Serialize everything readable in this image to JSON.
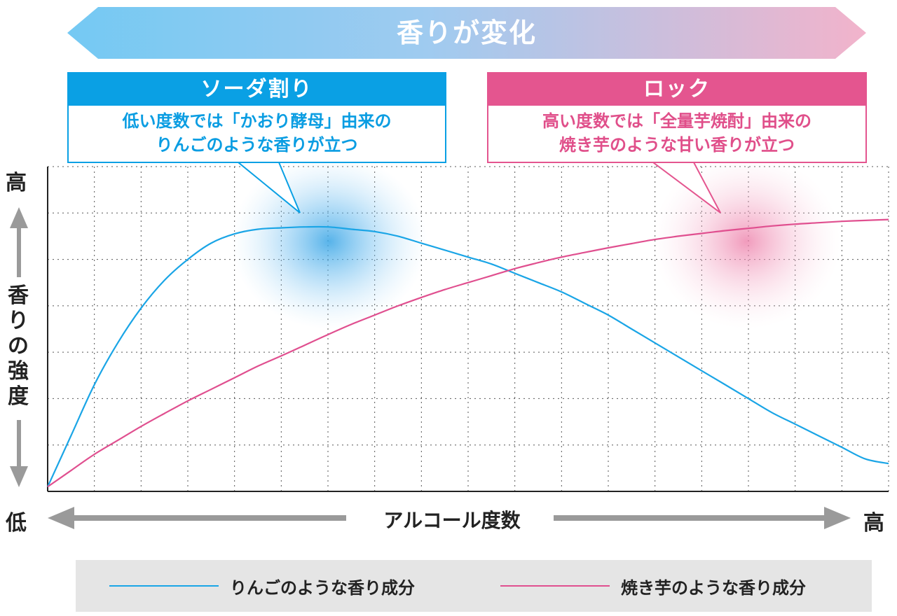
{
  "banner": {
    "title": "香りが変化"
  },
  "callouts": {
    "soda": {
      "title": "ソーダ割り",
      "line1": "低い度数では「かおり酵母」由来の",
      "line2": "りんごのような香りが立つ"
    },
    "rock": {
      "title": "ロック",
      "line1": "高い度数では「全量芋焼酎」由来の",
      "line2": "焼き芋のような甘い香りが立つ"
    }
  },
  "colors": {
    "blue": "#1aa5e6",
    "pink": "#e04f8f",
    "banner_start": "#74c9f3",
    "banner_end": "#f2b3cb",
    "arrow_gray": "#9a9a9a",
    "legend_bg": "#e5e5e5"
  },
  "chart_data": {
    "type": "line",
    "xlabel": "アルコール度数",
    "ylabel_chars": [
      "香",
      "り",
      "の",
      "強",
      "度"
    ],
    "y_high_label": "高",
    "y_low_label": "低",
    "x_high_label": "高",
    "xlim": [
      0,
      18
    ],
    "ylim": [
      0,
      7
    ],
    "grid": true,
    "legend": "bottom",
    "series": [
      {
        "name": "りんごのような香り成分",
        "color": "#1aa5e6",
        "x": [
          0,
          0.5,
          1,
          1.5,
          2,
          2.5,
          3,
          3.5,
          4,
          4.5,
          5,
          5.5,
          6,
          6.5,
          7,
          7.5,
          8,
          8.5,
          9,
          9.5,
          10,
          10.5,
          11,
          11.5,
          12,
          12.5,
          13,
          13.5,
          14,
          14.5,
          15,
          15.5,
          16,
          16.5,
          17,
          17.5,
          18
        ],
        "values": [
          0.1,
          1.2,
          2.3,
          3.2,
          3.95,
          4.55,
          5.0,
          5.35,
          5.55,
          5.65,
          5.68,
          5.7,
          5.7,
          5.65,
          5.6,
          5.5,
          5.35,
          5.2,
          5.05,
          4.9,
          4.7,
          4.5,
          4.3,
          4.05,
          3.8,
          3.5,
          3.2,
          2.9,
          2.6,
          2.3,
          2.0,
          1.7,
          1.45,
          1.2,
          0.95,
          0.7,
          0.6
        ]
      },
      {
        "name": "焼き芋のような香り成分",
        "color": "#e04f8f",
        "x": [
          0,
          0.5,
          1,
          1.5,
          2,
          2.5,
          3,
          3.5,
          4,
          4.5,
          5,
          5.5,
          6,
          6.5,
          7,
          7.5,
          8,
          8.5,
          9,
          9.5,
          10,
          10.5,
          11,
          11.5,
          12,
          12.5,
          13,
          13.5,
          14,
          14.5,
          15,
          15.5,
          16,
          16.5,
          17,
          17.5,
          18
        ],
        "values": [
          0.1,
          0.45,
          0.8,
          1.1,
          1.4,
          1.68,
          1.95,
          2.2,
          2.45,
          2.7,
          2.92,
          3.15,
          3.38,
          3.6,
          3.8,
          4.0,
          4.18,
          4.35,
          4.5,
          4.65,
          4.8,
          4.93,
          5.05,
          5.15,
          5.25,
          5.34,
          5.43,
          5.5,
          5.56,
          5.62,
          5.67,
          5.72,
          5.76,
          5.79,
          5.82,
          5.84,
          5.86
        ]
      }
    ]
  }
}
